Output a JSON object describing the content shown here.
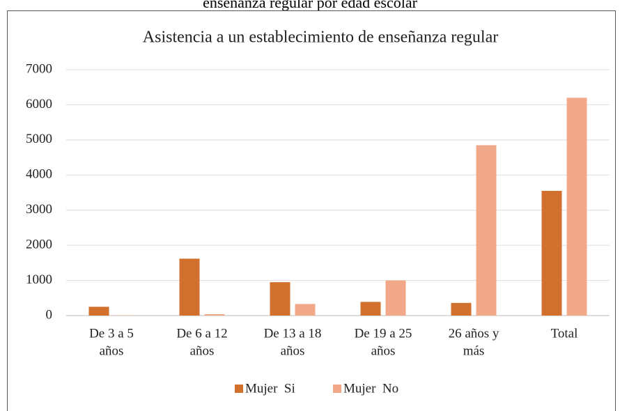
{
  "caption": "enseñanza regular por edad escolar",
  "chart_data": {
    "type": "bar",
    "title": "Asistencia a un establecimiento de enseñanza regular",
    "categories": [
      [
        "De 3 a 5",
        "años"
      ],
      [
        "De 6 a 12",
        "años"
      ],
      [
        "De 13 a 18",
        "años"
      ],
      [
        "De 19 a 25",
        "años"
      ],
      [
        "26 años y",
        "más"
      ],
      [
        "Total"
      ]
    ],
    "series": [
      {
        "name": "Mujer  Si",
        "color": "#d2702e",
        "values": [
          250,
          1620,
          950,
          390,
          360,
          3550
        ]
      },
      {
        "name": "Mujer  No",
        "color": "#f2a98a",
        "values": [
          10,
          40,
          330,
          1000,
          4850,
          6200
        ]
      }
    ],
    "ylim": [
      0,
      7000
    ],
    "yticks": [
      0,
      1000,
      2000,
      3000,
      4000,
      5000,
      6000,
      7000
    ],
    "grid": true,
    "legend": "bottom"
  }
}
